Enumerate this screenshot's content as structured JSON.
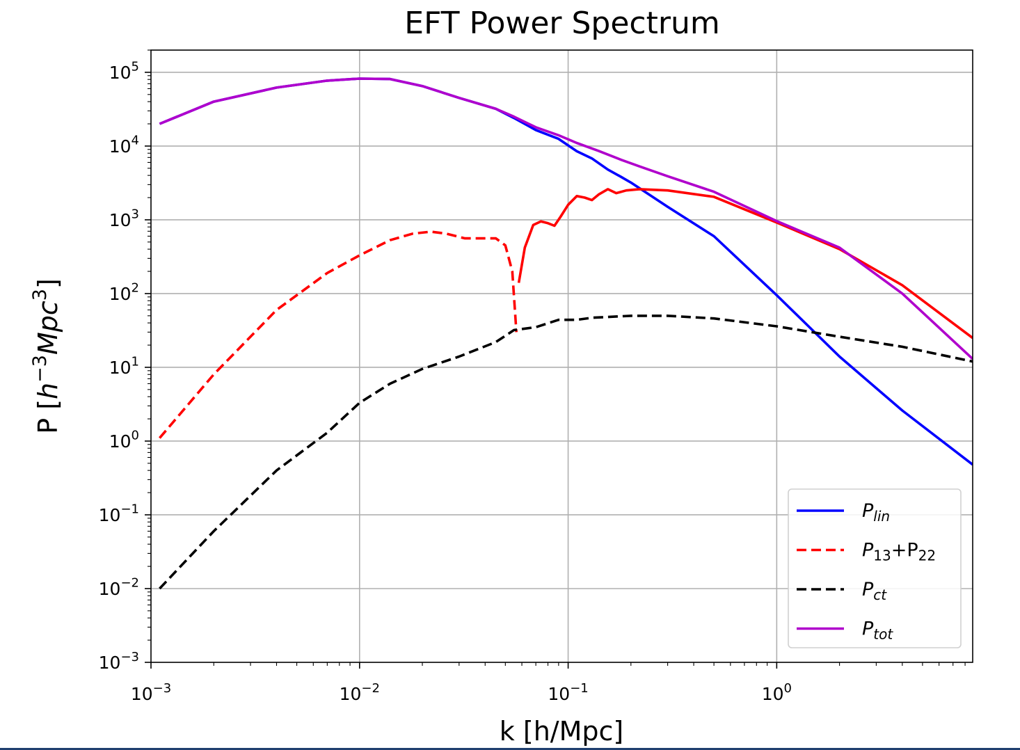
{
  "chart_data": {
    "type": "line",
    "title": "EFT Power Spectrum",
    "xlabel": "k [h/Mpc]",
    "ylabel": "P [h^-3 Mpc^3]",
    "xscale": "log",
    "yscale": "log",
    "xlim": [
      0.001,
      8.7
    ],
    "ylim": [
      0.001,
      200000
    ],
    "grid": true,
    "legend_loc": "lower right",
    "x_ticks": [
      {
        "value": 0.001,
        "base": "10",
        "exp": "−3"
      },
      {
        "value": 0.01,
        "base": "10",
        "exp": "−2"
      },
      {
        "value": 0.1,
        "base": "10",
        "exp": "−1"
      },
      {
        "value": 1,
        "base": "10",
        "exp": "0"
      }
    ],
    "y_ticks": [
      {
        "value": 0.001,
        "base": "10",
        "exp": "−3"
      },
      {
        "value": 0.01,
        "base": "10",
        "exp": "−2"
      },
      {
        "value": 0.1,
        "base": "10",
        "exp": "−1"
      },
      {
        "value": 1,
        "base": "10",
        "exp": "0"
      },
      {
        "value": 10,
        "base": "10",
        "exp": "1"
      },
      {
        "value": 100,
        "base": "10",
        "exp": "2"
      },
      {
        "value": 1000,
        "base": "10",
        "exp": "3"
      },
      {
        "value": 10000,
        "base": "10",
        "exp": "4"
      },
      {
        "value": 100000,
        "base": "10",
        "exp": "5"
      }
    ],
    "series": [
      {
        "name": "P_lin",
        "label_main": "P",
        "label_sub": "lin",
        "color": "#0000ff",
        "dash": "solid",
        "points": [
          [
            0.0011,
            20000
          ],
          [
            0.002,
            40000
          ],
          [
            0.004,
            62000
          ],
          [
            0.007,
            77000
          ],
          [
            0.01,
            82000
          ],
          [
            0.014,
            81000
          ],
          [
            0.02,
            65000
          ],
          [
            0.03,
            45000
          ],
          [
            0.045,
            32000
          ],
          [
            0.055,
            24000
          ],
          [
            0.07,
            16500
          ],
          [
            0.09,
            12500
          ],
          [
            0.11,
            8500
          ],
          [
            0.13,
            6800
          ],
          [
            0.155,
            4800
          ],
          [
            0.18,
            3800
          ],
          [
            0.2,
            3200
          ],
          [
            0.3,
            1500
          ],
          [
            0.5,
            600
          ],
          [
            1.0,
            95
          ],
          [
            2.0,
            14
          ],
          [
            4.0,
            2.6
          ],
          [
            8.7,
            0.48
          ]
        ]
      },
      {
        "name": "P_13+P_22 (negative)",
        "label_main": "P",
        "label_sub": "13",
        "label_main2": "+P",
        "label_sub2": "22",
        "color": "#ff0000",
        "dash": "dashed",
        "points": [
          [
            0.0011,
            1.1
          ],
          [
            0.002,
            8
          ],
          [
            0.004,
            60
          ],
          [
            0.007,
            190
          ],
          [
            0.01,
            330
          ],
          [
            0.014,
            530
          ],
          [
            0.018,
            650
          ],
          [
            0.022,
            690
          ],
          [
            0.026,
            650
          ],
          [
            0.032,
            560
          ],
          [
            0.038,
            560
          ],
          [
            0.045,
            560
          ],
          [
            0.05,
            450
          ],
          [
            0.054,
            200
          ],
          [
            0.0565,
            30
          ]
        ]
      },
      {
        "name": "P_13+P_22 (positive)",
        "legend": false,
        "color": "#ff0000",
        "dash": "solid",
        "points": [
          [
            0.058,
            140
          ],
          [
            0.062,
            420
          ],
          [
            0.068,
            850
          ],
          [
            0.074,
            950
          ],
          [
            0.08,
            900
          ],
          [
            0.086,
            830
          ],
          [
            0.092,
            1100
          ],
          [
            0.1,
            1600
          ],
          [
            0.11,
            2100
          ],
          [
            0.12,
            2000
          ],
          [
            0.13,
            1850
          ],
          [
            0.14,
            2200
          ],
          [
            0.155,
            2600
          ],
          [
            0.17,
            2300
          ],
          [
            0.19,
            2500
          ],
          [
            0.22,
            2600
          ],
          [
            0.3,
            2500
          ],
          [
            0.5,
            2050
          ],
          [
            1.0,
            920
          ],
          [
            2.0,
            400
          ],
          [
            4.0,
            130
          ],
          [
            8.7,
            25
          ]
        ]
      },
      {
        "name": "P_ct",
        "label_main": "P",
        "label_sub": "ct",
        "color": "#000000",
        "dash": "dashed",
        "points": [
          [
            0.0011,
            0.01
          ],
          [
            0.002,
            0.06
          ],
          [
            0.004,
            0.4
          ],
          [
            0.007,
            1.3
          ],
          [
            0.01,
            3.3
          ],
          [
            0.014,
            6
          ],
          [
            0.02,
            9.5
          ],
          [
            0.03,
            14
          ],
          [
            0.045,
            22
          ],
          [
            0.055,
            32
          ],
          [
            0.07,
            35
          ],
          [
            0.09,
            44
          ],
          [
            0.11,
            44
          ],
          [
            0.13,
            47
          ],
          [
            0.2,
            50
          ],
          [
            0.3,
            50
          ],
          [
            0.5,
            46
          ],
          [
            1.0,
            36
          ],
          [
            2.0,
            26
          ],
          [
            4.0,
            19
          ],
          [
            8.7,
            12
          ]
        ]
      },
      {
        "name": "P_tot",
        "label_main": "P",
        "label_sub": "tot",
        "color": "#b000cc",
        "dash": "solid",
        "points": [
          [
            0.0011,
            20000
          ],
          [
            0.002,
            40000
          ],
          [
            0.004,
            62000
          ],
          [
            0.007,
            77000
          ],
          [
            0.01,
            82000
          ],
          [
            0.014,
            81000
          ],
          [
            0.02,
            65000
          ],
          [
            0.03,
            45000
          ],
          [
            0.045,
            32000
          ],
          [
            0.055,
            25000
          ],
          [
            0.07,
            18000
          ],
          [
            0.09,
            14000
          ],
          [
            0.11,
            11000
          ],
          [
            0.14,
            8600
          ],
          [
            0.18,
            6500
          ],
          [
            0.22,
            5300
          ],
          [
            0.3,
            3900
          ],
          [
            0.5,
            2400
          ],
          [
            1.0,
            960
          ],
          [
            2.0,
            420
          ],
          [
            4.0,
            100
          ],
          [
            8.7,
            13
          ]
        ]
      }
    ]
  }
}
